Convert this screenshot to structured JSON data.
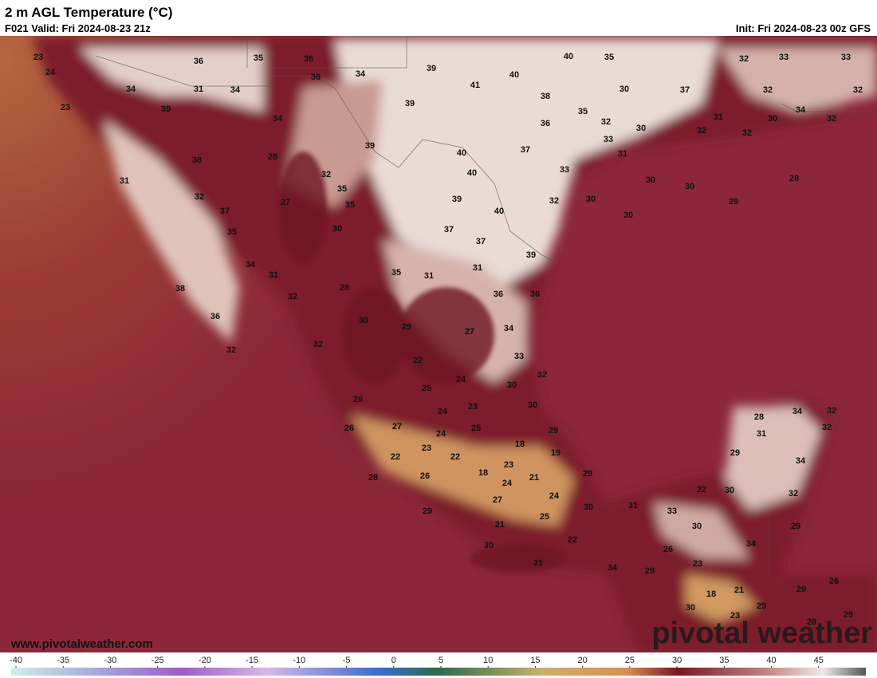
{
  "header": {
    "title": "2 m AGL Temperature (°C)",
    "valid": "F021 Valid: Fri 2024-08-23 21z",
    "init": "Init: Fri 2024-08-23 00z GFS"
  },
  "website": "www.pivotalweather.com",
  "watermark": "pivotal weather",
  "map_labels": [
    23,
    24,
    23,
    36,
    35,
    36,
    39,
    40,
    35,
    32,
    33,
    33,
    34,
    31,
    34,
    36,
    34,
    41,
    40,
    38,
    30,
    37,
    32,
    32,
    39,
    34,
    39,
    35,
    36,
    32,
    30,
    31,
    34,
    30,
    32,
    32,
    32,
    28,
    39,
    40,
    37,
    33,
    31,
    38,
    31,
    32,
    40,
    33,
    30,
    30,
    28,
    35,
    32,
    27,
    35,
    39,
    32,
    30,
    29,
    40,
    30,
    37,
    35,
    30,
    37,
    37,
    39,
    34,
    31,
    31,
    35,
    31,
    38,
    32,
    28,
    36,
    36,
    36,
    30,
    29,
    27,
    34,
    32,
    32,
    33,
    22,
    32,
    24,
    25,
    30,
    26,
    30,
    24,
    23,
    28,
    34,
    32,
    27,
    25,
    26,
    24,
    29,
    31,
    32,
    18,
    23,
    22,
    19,
    29,
    22,
    34,
    23,
    18,
    21,
    29,
    26,
    24,
    28,
    22,
    30,
    32,
    27,
    24,
    31,
    33,
    30,
    29,
    25,
    21,
    30,
    29,
    22,
    30,
    26,
    34,
    31,
    34,
    29,
    23,
    26,
    18,
    21,
    29,
    30,
    29,
    23,
    29,
    28
  ],
  "colorbar": {
    "ticks": [
      -40,
      -35,
      -30,
      -25,
      -20,
      -15,
      -10,
      -5,
      0,
      5,
      10,
      15,
      20,
      25,
      30,
      35,
      40,
      45
    ]
  }
}
